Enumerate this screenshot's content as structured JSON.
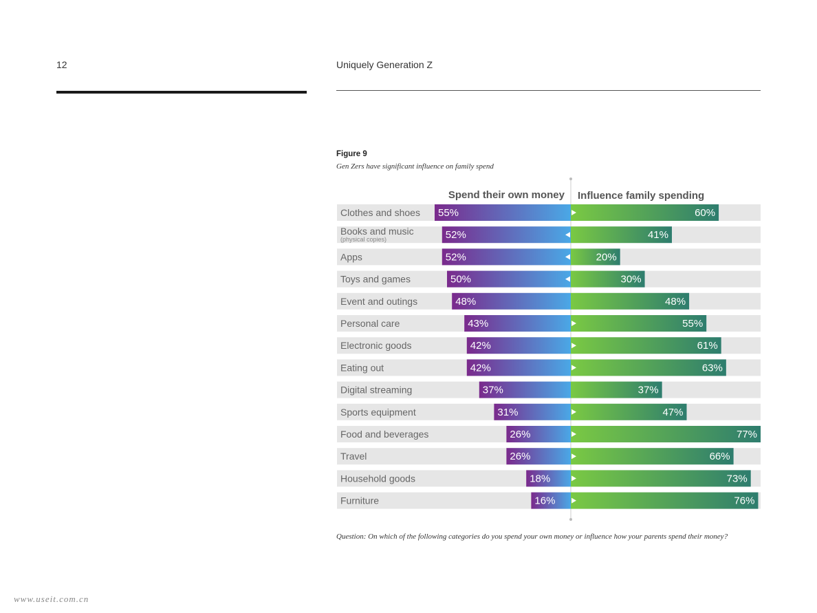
{
  "header": {
    "page_number": "12",
    "running_title": "Uniquely Generation Z"
  },
  "figure": {
    "label": "Figure 9",
    "caption": "Gen Zers have significant influence on family spend",
    "question": "Question: On which of the following categories do you spend your own money or influence how your parents spend their money?"
  },
  "watermark": "www.useit.com.cn",
  "colors": {
    "row_bg": "#e6e6e6",
    "left_start": "#7a2a8c",
    "left_end": "#4aa8e6",
    "right_start": "#7ac943",
    "right_end": "#2e7d6e"
  },
  "chart_data": {
    "type": "bar",
    "orientation": "horizontal-diverging",
    "series": [
      {
        "name": "Spend their own money",
        "values": [
          55,
          52,
          52,
          50,
          48,
          43,
          42,
          42,
          37,
          31,
          26,
          26,
          18,
          16
        ]
      },
      {
        "name": "Influence family spending",
        "values": [
          60,
          41,
          20,
          30,
          48,
          55,
          61,
          63,
          37,
          47,
          77,
          66,
          73,
          76
        ]
      }
    ],
    "categories": [
      {
        "label": "Clothes and shoes"
      },
      {
        "label": "Books and music",
        "sub": "(physical copies)"
      },
      {
        "label": "Apps"
      },
      {
        "label": "Toys and games"
      },
      {
        "label": "Event and outings"
      },
      {
        "label": "Personal care"
      },
      {
        "label": "Electronic goods"
      },
      {
        "label": "Eating out"
      },
      {
        "label": "Digital streaming"
      },
      {
        "label": "Sports equipment"
      },
      {
        "label": "Food and beverages"
      },
      {
        "label": "Travel"
      },
      {
        "label": "Household goods"
      },
      {
        "label": "Furniture"
      }
    ],
    "arrows": [
      "right",
      "left",
      "left",
      "left",
      "none",
      "right",
      "right",
      "right",
      "none",
      "right",
      "right",
      "right",
      "right",
      "right"
    ],
    "value_suffix": "%"
  }
}
